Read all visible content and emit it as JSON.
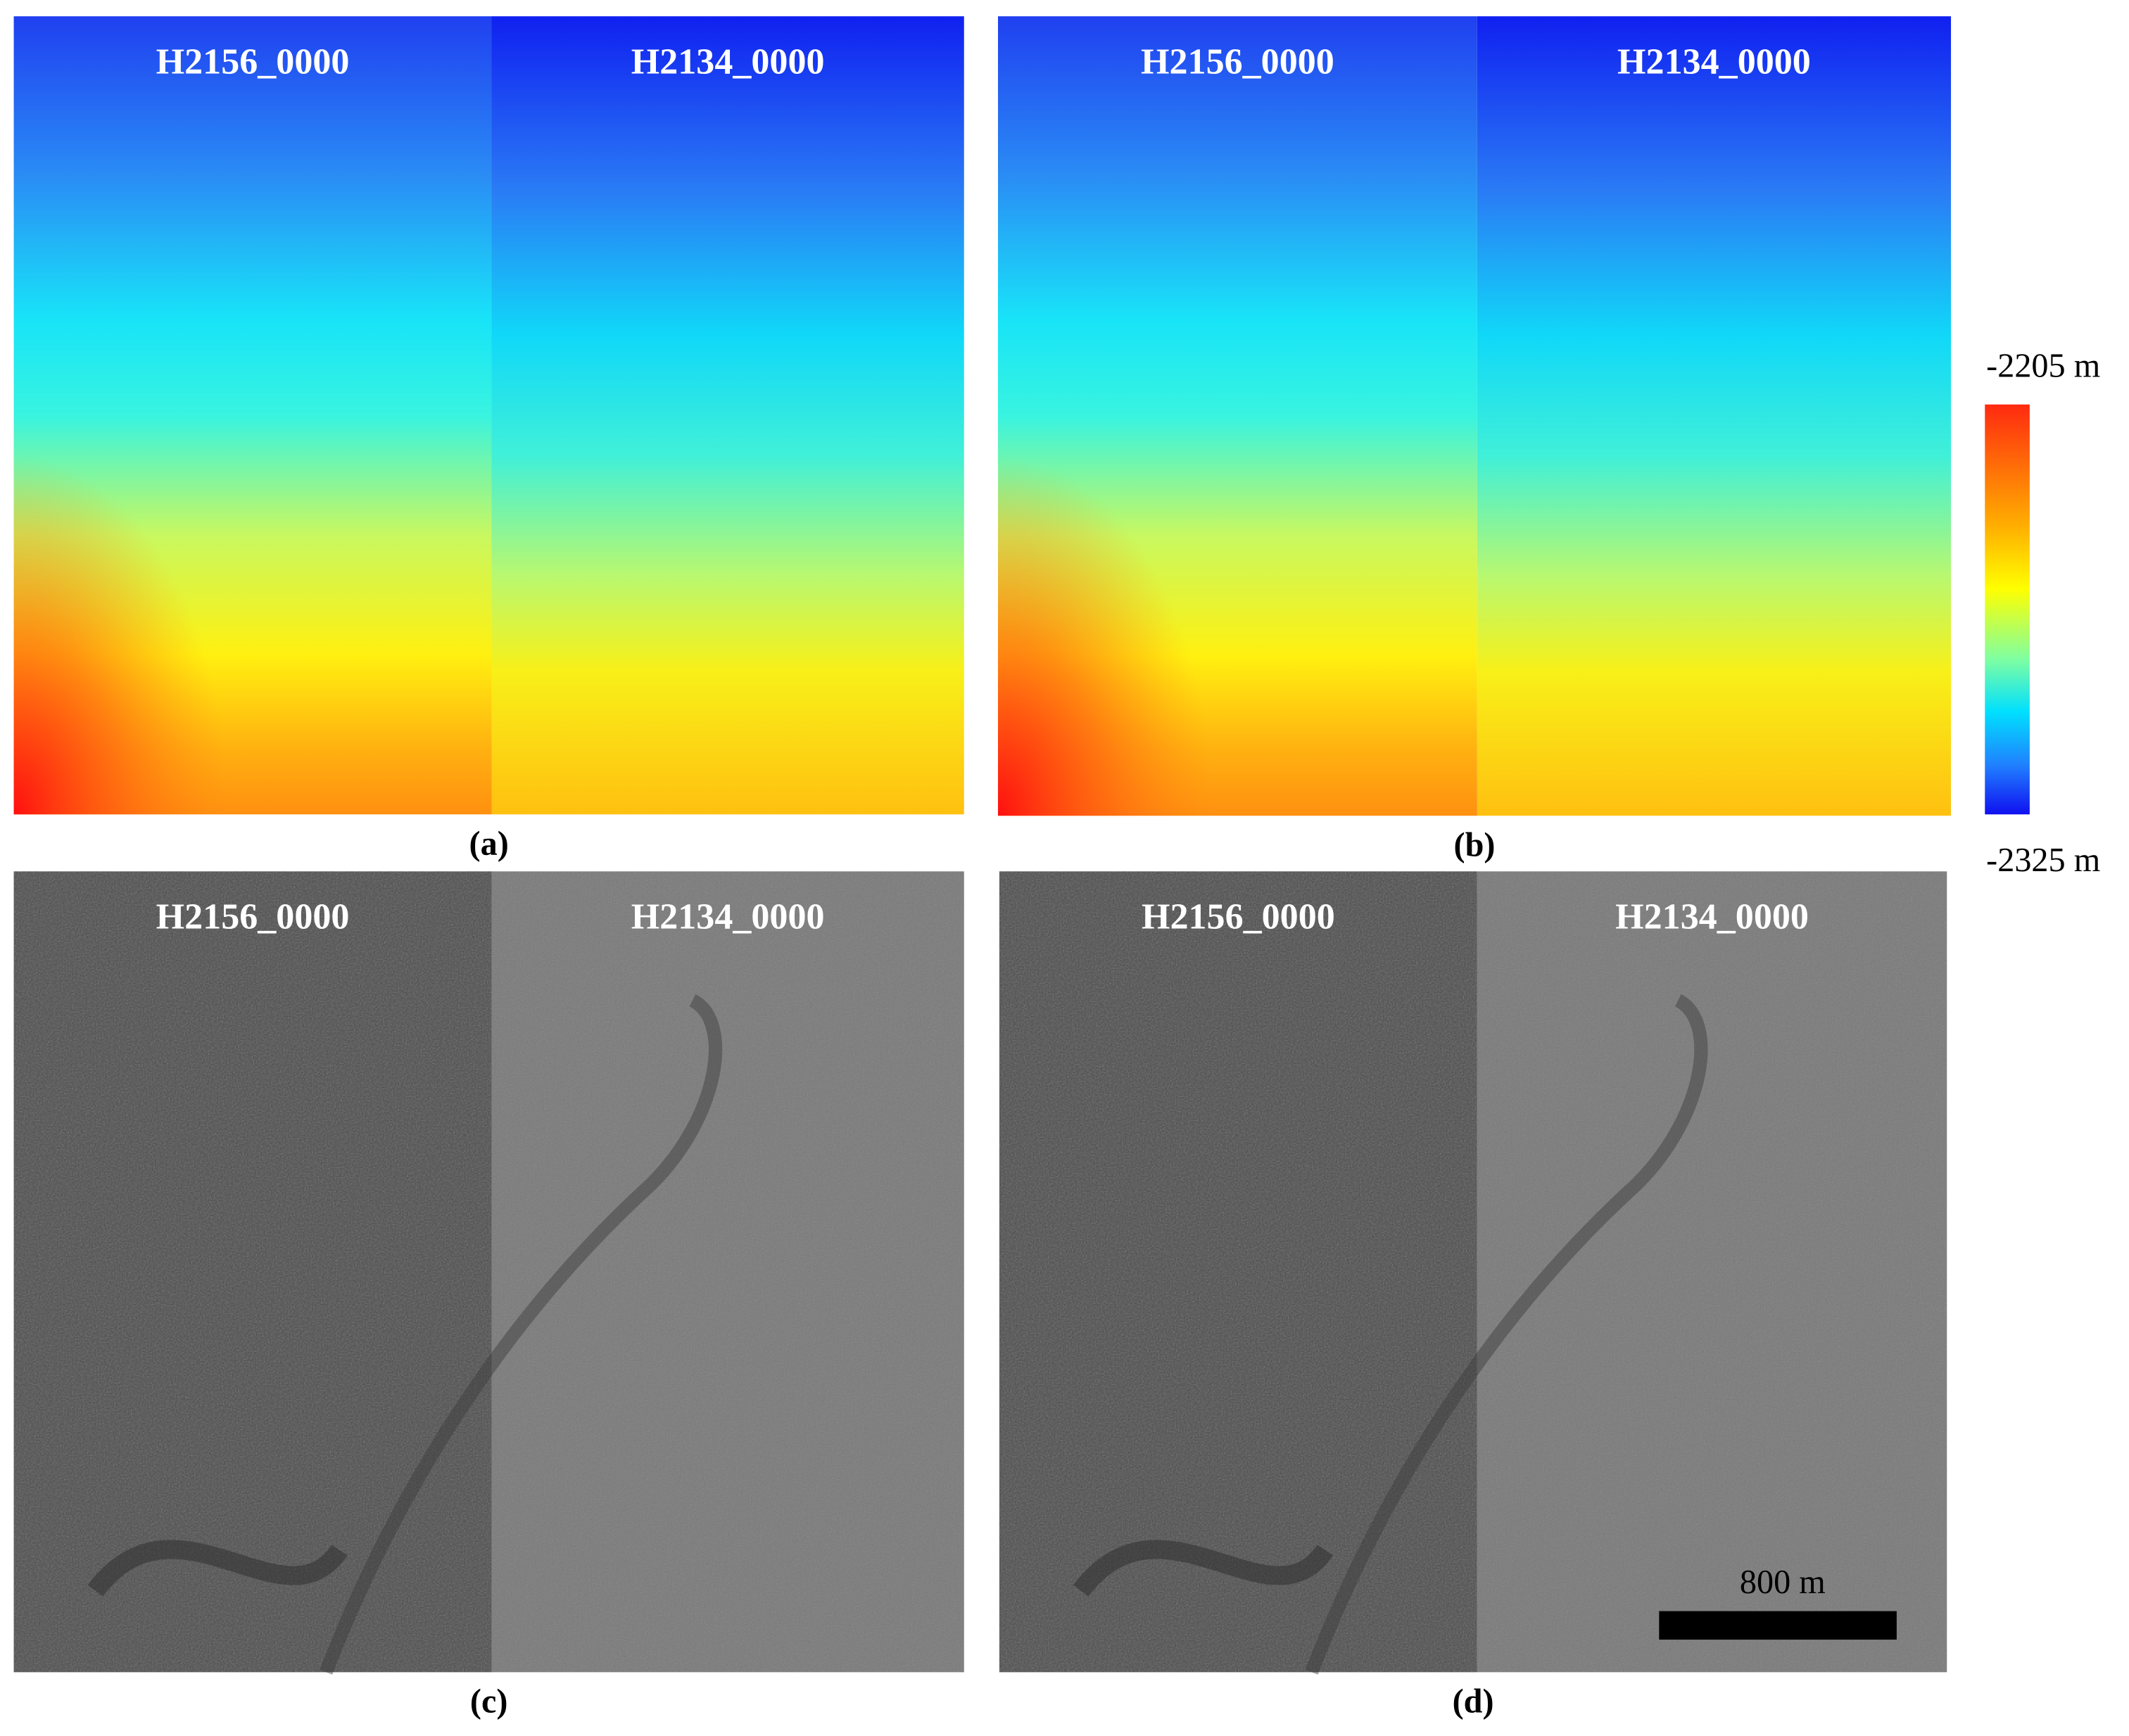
{
  "panels": [
    {
      "label": "(a)",
      "tiles": [
        "H2156_0000",
        "H2134_0000"
      ]
    },
    {
      "label": "(b)",
      "tiles": [
        "H2156_0000",
        "H2134_0000"
      ]
    },
    {
      "label": "(c)",
      "tiles": [
        "H2156_0000",
        "H2134_0000"
      ]
    },
    {
      "label": "(d)",
      "tiles": [
        "H2156_0000",
        "H2134_0000"
      ]
    }
  ],
  "colorbar": {
    "top_label": "-2205 m",
    "bottom_label": "-2325 m"
  },
  "scale_bar": {
    "label": "800 m"
  }
}
